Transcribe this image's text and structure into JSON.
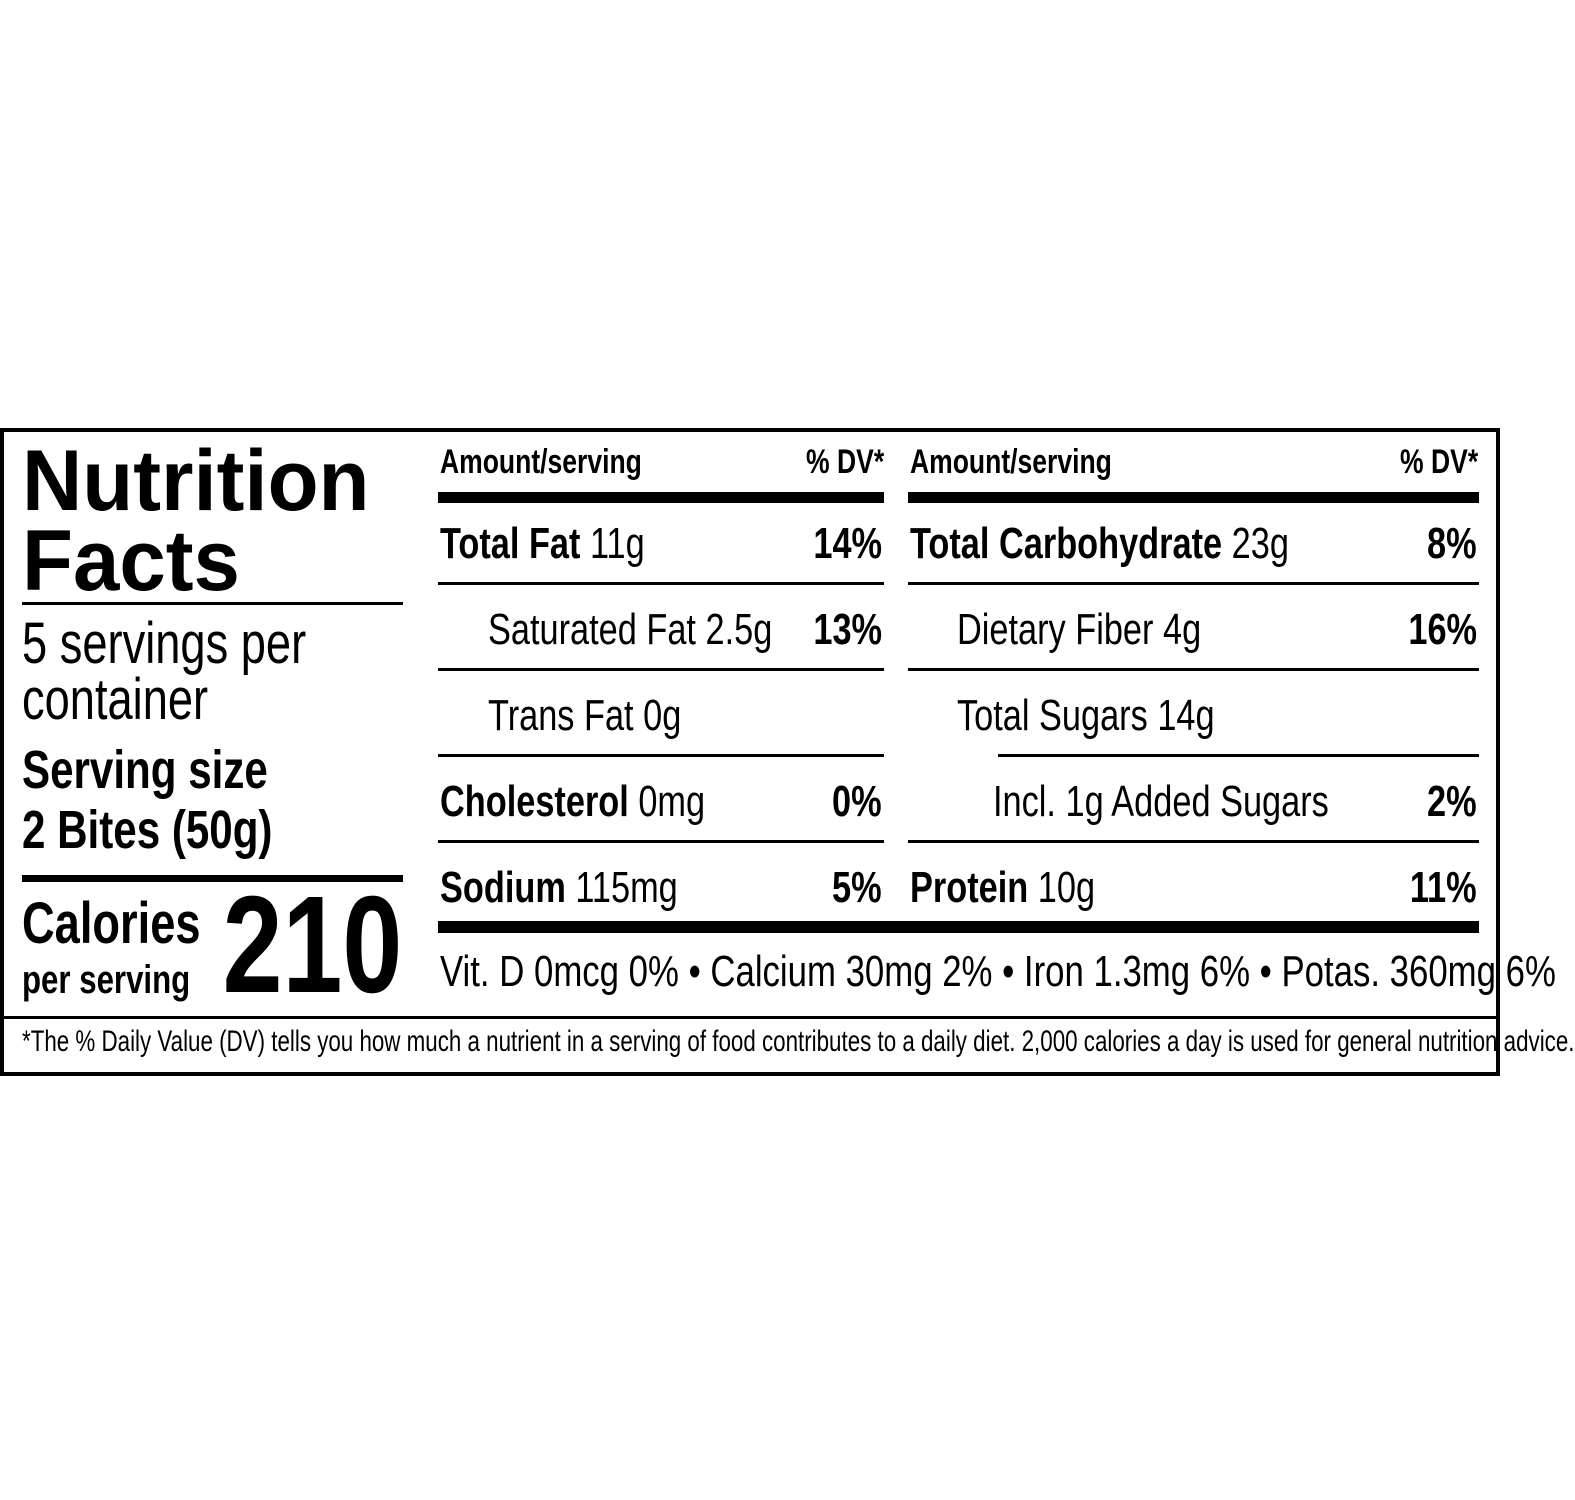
{
  "title_line1": "Nutrition",
  "title_line2": "Facts",
  "servings": {
    "line1": "5 servings per",
    "line2": "container"
  },
  "serving_size": {
    "label": "Serving size",
    "value": "2 Bites (50g)"
  },
  "calories": {
    "label": "Calories",
    "sublabel": "per serving",
    "value": "210"
  },
  "left_table": {
    "header_amount": "Amount/serving",
    "header_dv": "% DV*",
    "rows": [
      {
        "name": "Total Fat",
        "amount": "11g",
        "dv": "14%"
      },
      {
        "name": "Saturated Fat",
        "amount": "2.5g",
        "dv": "13%"
      },
      {
        "name": "Trans Fat",
        "amount": "0g",
        "dv": ""
      },
      {
        "name": "Cholesterol",
        "amount": "0mg",
        "dv": "0%"
      },
      {
        "name": "Sodium",
        "amount": "115mg",
        "dv": "5%"
      }
    ]
  },
  "right_table": {
    "header_amount": "Amount/serving",
    "header_dv": "% DV*",
    "rows": [
      {
        "name": "Total Carbohydrate",
        "amount": "23g",
        "dv": "8%"
      },
      {
        "name": "Dietary Fiber",
        "amount": "4g",
        "dv": "16%"
      },
      {
        "name": "Total Sugars",
        "amount": "14g",
        "dv": ""
      },
      {
        "name": "Incl. 1g Added Sugars",
        "amount": "",
        "dv": "2%"
      },
      {
        "name": "Protein",
        "amount": "10g",
        "dv": "11%"
      }
    ]
  },
  "micronutrients": "Vit. D 0mcg 0% • Calcium 30mg 2% • Iron 1.3mg 6% • Potas. 360mg 6%",
  "footnote": "*The % Daily Value (DV) tells you how much a nutrient in a serving of food contributes to a daily diet. 2,000 calories a day is used for general nutrition advice."
}
